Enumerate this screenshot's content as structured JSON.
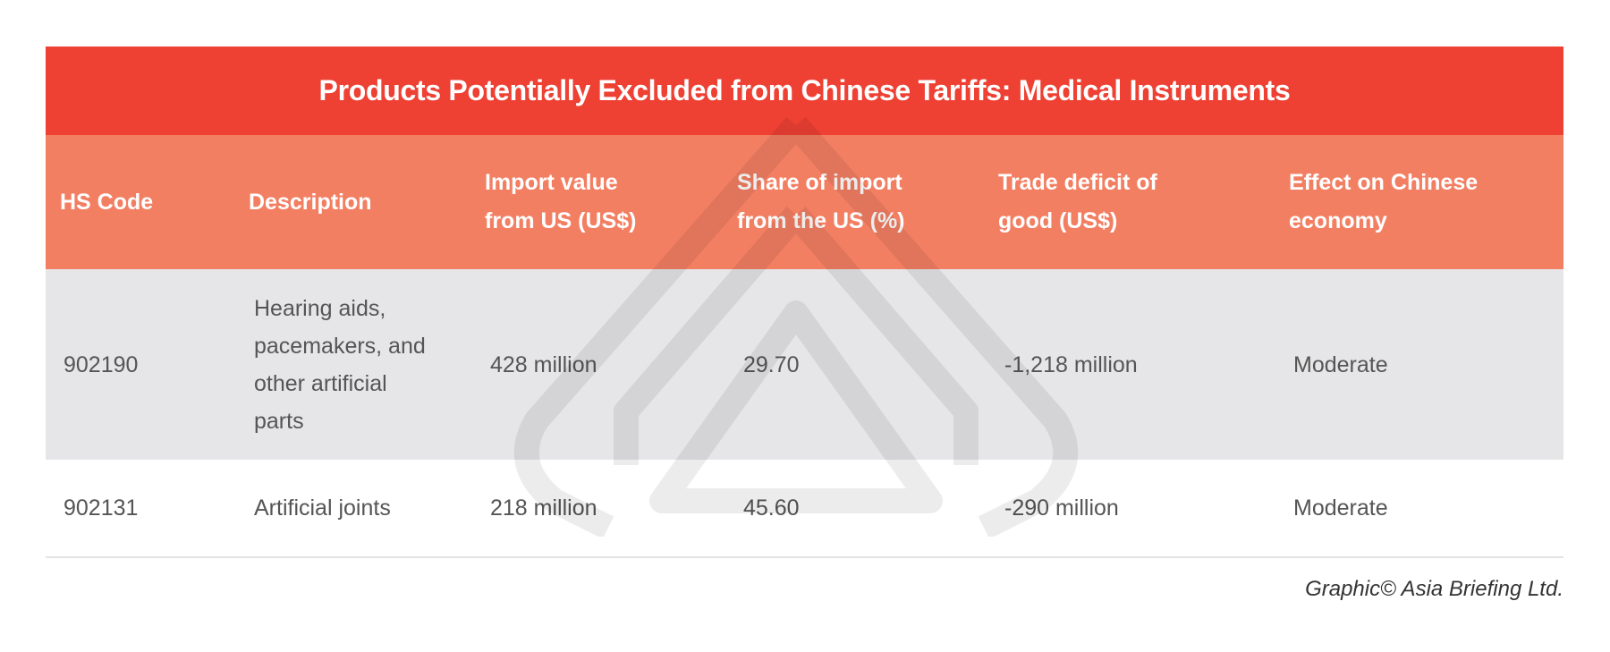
{
  "title": "Products Potentially Excluded from Chinese Tariffs: Medical Instruments",
  "columns": [
    "HS Code",
    "Description",
    "Import value from US (US$)",
    "Share of import from the US (%)",
    "Trade deficit of good (US$)",
    "Effect on Chinese economy"
  ],
  "rows": [
    {
      "code": "902190",
      "description": "Hearing aids, pacemakers, and other artificial parts",
      "import_value": "428 million",
      "share": "29.70",
      "deficit": "-1,218 million",
      "effect": "Moderate"
    },
    {
      "code": "902131",
      "description": "Artificial joints",
      "import_value": "218 million",
      "share": "45.60",
      "deficit": "-290 million",
      "effect": "Moderate"
    }
  ],
  "footer": "Graphic© Asia Briefing Ltd.",
  "colors": {
    "title_bg": "#ee4033",
    "header_bg": "#f37f63",
    "row_alt_bg": "#e6e6e8"
  }
}
